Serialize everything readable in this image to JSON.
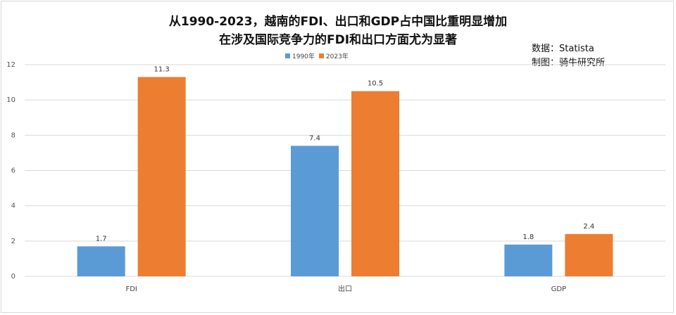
{
  "title_line1": "从1990-2023，越南的FDI、出口和GDP占中国比重明显增加",
  "title_line2": "在涉及国际竞争力的FDI和出口方面尤为显著",
  "source_line1": "数据：Statista",
  "source_line2": "制图：骑牛研究所",
  "colors": {
    "series_1990": "#5b9bd5",
    "series_2023": "#ed7d31",
    "grid": "#d9d9d9"
  },
  "chart_data": {
    "type": "bar",
    "categories": [
      "FDI",
      "出口",
      "GDP"
    ],
    "series": [
      {
        "name": "1990年",
        "values": [
          1.7,
          7.4,
          1.8
        ]
      },
      {
        "name": "2023年",
        "values": [
          11.3,
          10.5,
          2.4
        ]
      }
    ],
    "ylim": [
      0,
      12
    ],
    "yticks": [
      0,
      2,
      4,
      6,
      8,
      10,
      12
    ],
    "grid": true,
    "legend": "top-center"
  }
}
